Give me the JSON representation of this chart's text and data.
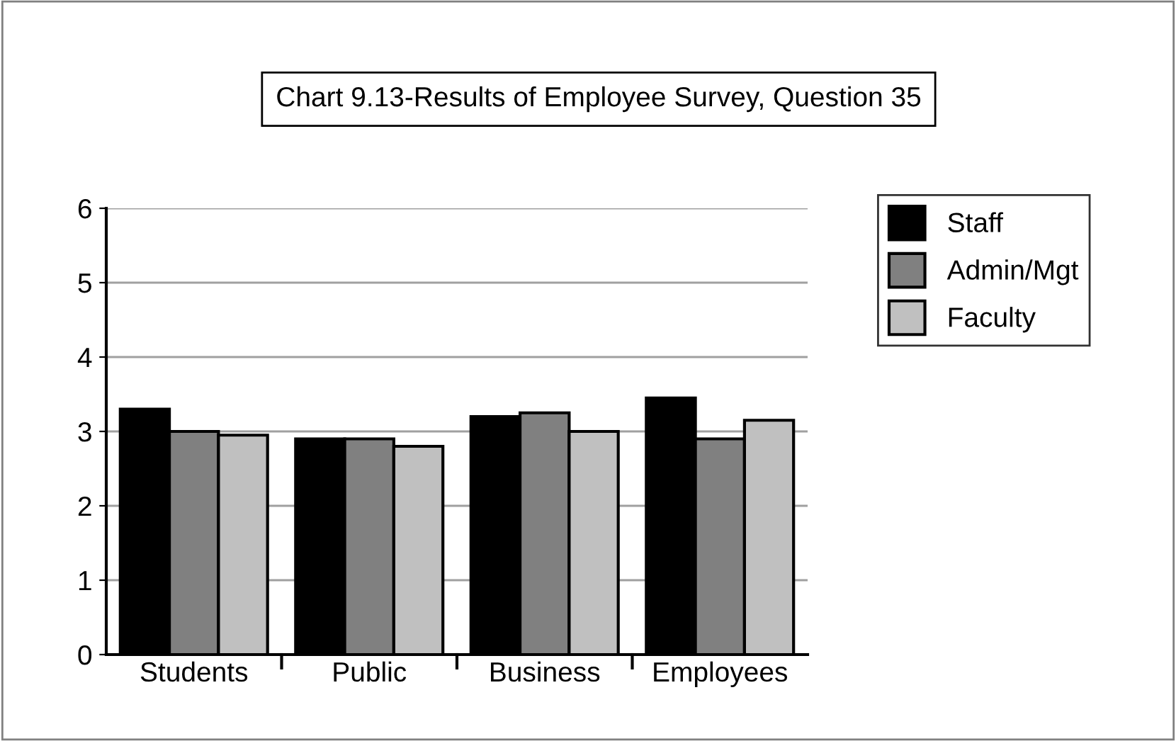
{
  "chart_data": {
    "type": "bar",
    "title": "Chart 9.13-Results of Employee Survey, Question 35",
    "categories": [
      "Students",
      "Public",
      "Business",
      "Employees"
    ],
    "series": [
      {
        "name": "Staff",
        "color": "#000000",
        "values": [
          3.3,
          2.9,
          3.2,
          3.45
        ]
      },
      {
        "name": "Admin/Mgt",
        "color": "#808080",
        "values": [
          3.0,
          2.9,
          3.25,
          2.9
        ]
      },
      {
        "name": "Faculty",
        "color": "#c0c0c0",
        "values": [
          2.95,
          2.8,
          3.0,
          3.15
        ]
      }
    ],
    "ylim": [
      0,
      6
    ],
    "yticks": [
      0,
      1,
      2,
      3,
      4,
      5,
      6
    ],
    "grid": "y",
    "legend": "right"
  }
}
